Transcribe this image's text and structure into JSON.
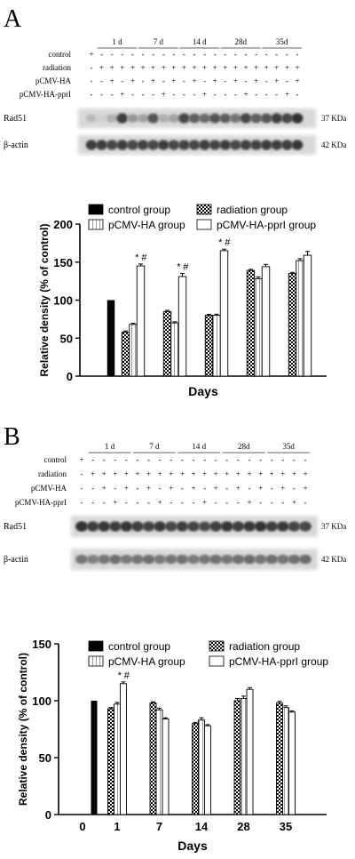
{
  "panels": [
    {
      "letter": "A",
      "blot": {
        "day_headers": [
          "1 d",
          "7 d",
          "14 d",
          "28d",
          "35d"
        ],
        "row_labels": [
          "control",
          "radiation",
          "pCMV-HA",
          "pCMV-HA-pprI"
        ],
        "signs": [
          [
            "+",
            "-",
            "-",
            "-",
            "-",
            "-",
            "-",
            "-",
            "-",
            "-",
            "-",
            "-",
            "-",
            "-",
            "-",
            "-",
            "-",
            "-",
            "-",
            "-",
            "-"
          ],
          [
            "-",
            "+",
            "+",
            "+",
            "+",
            "+",
            "+",
            "+",
            "+",
            "+",
            "+",
            "+",
            "+",
            "+",
            "+",
            "+",
            "+",
            "+",
            "+",
            "+",
            "+"
          ],
          [
            "-",
            "-",
            "+",
            "-",
            "+",
            "-",
            "+",
            "-",
            "+",
            "-",
            "+",
            "-",
            "+",
            "-",
            "+",
            "-",
            "+",
            "-",
            "+",
            "-",
            "+"
          ],
          [
            "-",
            "-",
            "-",
            "+",
            "-",
            "-",
            "-",
            "+",
            "-",
            "-",
            "-",
            "+",
            "-",
            "-",
            "-",
            "+",
            "-",
            "-",
            "-",
            "+",
            "-"
          ]
        ],
        "bands": [
          {
            "name": "Rad51",
            "size": "37 KDa",
            "intensity": [
              0.3,
              0.2,
              0.35,
              0.85,
              0.45,
              0.4,
              0.75,
              0.35,
              0.4,
              0.8,
              0.7,
              0.65,
              0.75,
              0.7,
              0.6,
              0.8,
              0.7,
              0.75,
              0.85,
              0.8,
              0.9
            ]
          },
          {
            "name": "β-actin",
            "size": "42 KDa",
            "intensity": [
              0.85,
              0.85,
              0.8,
              0.85,
              0.8,
              0.82,
              0.8,
              0.84,
              0.8,
              0.82,
              0.8,
              0.85,
              0.82,
              0.84,
              0.8,
              0.83,
              0.82,
              0.85,
              0.84,
              0.85,
              0.86
            ]
          }
        ]
      }
    },
    {
      "letter": "B",
      "blot": {
        "day_headers": [
          "1 d",
          "7 d",
          "14 d",
          "28d",
          "35d"
        ],
        "row_labels": [
          "control",
          "radiation",
          "pCMV-HA",
          "pCMV-HA-pprI"
        ],
        "signs": [
          [
            "+",
            "-",
            "-",
            "-",
            "-",
            "-",
            "-",
            "-",
            "-",
            "-",
            "-",
            "-",
            "-",
            "-",
            "-",
            "-",
            "-",
            "-",
            "-",
            "-",
            "-"
          ],
          [
            "-",
            "+",
            "+",
            "+",
            "+",
            "+",
            "+",
            "+",
            "+",
            "+",
            "+",
            "+",
            "+",
            "+",
            "+",
            "+",
            "+",
            "+",
            "+",
            "+",
            "+"
          ],
          [
            "-",
            "-",
            "+",
            "-",
            "+",
            "-",
            "+",
            "-",
            "+",
            "-",
            "+",
            "-",
            "+",
            "-",
            "+",
            "-",
            "+",
            "-",
            "+",
            "-",
            "+"
          ],
          [
            "-",
            "-",
            "-",
            "+",
            "-",
            "-",
            "-",
            "+",
            "-",
            "-",
            "-",
            "+",
            "-",
            "-",
            "-",
            "+",
            "-",
            "-",
            "-",
            "+",
            "-"
          ]
        ],
        "bands": [
          {
            "name": "Rad51",
            "size": "37 KDa",
            "intensity": [
              0.9,
              0.85,
              0.88,
              0.85,
              0.88,
              0.85,
              0.82,
              0.86,
              0.8,
              0.84,
              0.82,
              0.78,
              0.85,
              0.88,
              0.85,
              0.86,
              0.9,
              0.84,
              0.86,
              0.82,
              0.8
            ]
          },
          {
            "name": "β-actin",
            "size": "42 KDa",
            "intensity": [
              0.6,
              0.55,
              0.6,
              0.62,
              0.58,
              0.6,
              0.62,
              0.58,
              0.6,
              0.62,
              0.58,
              0.6,
              0.62,
              0.6,
              0.62,
              0.64,
              0.6,
              0.62,
              0.6,
              0.62,
              0.64
            ]
          }
        ]
      }
    }
  ],
  "chart_data": [
    {
      "type": "bar",
      "title": "",
      "xlabel": "Days",
      "ylabel": "Relative density (% of control)",
      "ylim": [
        0,
        200
      ],
      "yticks": [
        0,
        50,
        100,
        150,
        200
      ],
      "categories": [
        "",
        "",
        "",
        "",
        ""
      ],
      "control": {
        "name": "control group",
        "value": 100,
        "error": 0,
        "color": "#000000"
      },
      "legend": [
        {
          "name": "control group",
          "pattern": "solid"
        },
        {
          "name": "radiation group",
          "pattern": "checker"
        },
        {
          "name": "pCMV-HA group",
          "pattern": "open-stripe"
        },
        {
          "name": "pCMV-HA-pprI group",
          "pattern": "open"
        }
      ],
      "series": [
        {
          "name": "radiation group",
          "pattern": "checker",
          "values": [
            58,
            85,
            80,
            139,
            135
          ],
          "errors": [
            1.5,
            1.5,
            1.2,
            1.5,
            1.5
          ]
        },
        {
          "name": "pCMV-HA group",
          "pattern": "open-stripe",
          "values": [
            68,
            70,
            80,
            128,
            152
          ],
          "errors": [
            1.5,
            1.5,
            1.5,
            2.5,
            2.5
          ]
        },
        {
          "name": "pCMV-HA-pprI group",
          "pattern": "open",
          "values": [
            145,
            131,
            165,
            144,
            159
          ],
          "errors": [
            2.5,
            4,
            2,
            3,
            5
          ]
        }
      ],
      "annotations": [
        {
          "group": 0,
          "text": "* #"
        },
        {
          "group": 1,
          "text": "* #"
        },
        {
          "group": 2,
          "text": "* #"
        }
      ]
    },
    {
      "type": "bar",
      "title": "",
      "xlabel": "Days",
      "ylabel": "Relative density (% of control)",
      "ylim": [
        0,
        150
      ],
      "yticks": [
        0,
        50,
        100,
        150
      ],
      "categories": [
        "1",
        "7",
        "14",
        "28",
        "35"
      ],
      "zero_label": "0",
      "control": {
        "name": "control group",
        "value": 100,
        "error": 0,
        "color": "#000000"
      },
      "legend": [
        {
          "name": "control group",
          "pattern": "solid"
        },
        {
          "name": "radiation group",
          "pattern": "checker"
        },
        {
          "name": "pCMV-HA group",
          "pattern": "open-stripe"
        },
        {
          "name": "pCMV-HA-pprI group",
          "pattern": "open"
        }
      ],
      "series": [
        {
          "name": "radiation group",
          "pattern": "checker",
          "values": [
            93,
            98,
            80,
            100,
            98
          ],
          "errors": [
            1,
            1,
            1,
            2,
            1.5
          ]
        },
        {
          "name": "pCMV-HA group",
          "pattern": "open-stripe",
          "values": [
            97,
            92,
            83,
            102,
            94
          ],
          "errors": [
            1.5,
            1.5,
            2,
            2,
            1.5
          ]
        },
        {
          "name": "pCMV-HA-pprI group",
          "pattern": "open",
          "values": [
            115,
            84,
            78,
            110,
            90
          ],
          "errors": [
            1.5,
            1,
            1,
            1.5,
            1
          ]
        }
      ],
      "annotations": [
        {
          "group": 0,
          "text": "* #"
        }
      ]
    }
  ]
}
